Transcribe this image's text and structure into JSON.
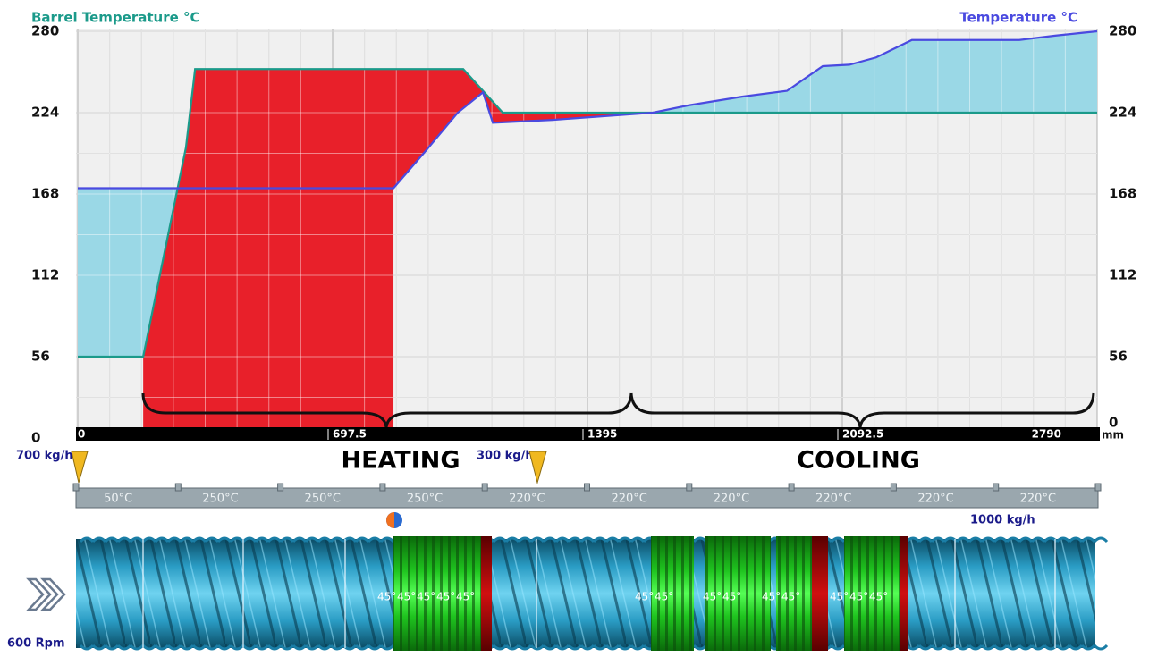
{
  "chart_data": {
    "type": "area",
    "ylabel": "Barrel Temperature °C",
    "y2label": "Temperature °C",
    "xlabel": "mm",
    "xlim": [
      0,
      2790
    ],
    "xticks": [
      0,
      697.5,
      1395,
      2092.5,
      2790
    ],
    "ylim": [
      0,
      280
    ],
    "yticks": [
      0,
      56,
      112,
      168,
      224,
      280
    ],
    "y2lim": [
      0,
      280
    ],
    "y2ticks": [
      0,
      56,
      112,
      168,
      224,
      280
    ],
    "grid": true,
    "heat_fill": "#e8202a",
    "cool_fill": "#9ad8e6",
    "series": [
      {
        "name": "Barrel Temperature °C",
        "color": "#1b9a8a",
        "x": [
          0,
          179,
          296,
          321,
          1055,
          1163,
          2790
        ],
        "values": [
          56,
          56,
          200,
          254,
          254,
          224,
          224
        ]
      },
      {
        "name": "Temperature °C",
        "color": "#4a4ae0",
        "axis": "y2",
        "x": [
          0,
          864,
          950,
          1040,
          1109,
          1136,
          1300,
          1574,
          1671,
          1818,
          1941,
          2039,
          2112,
          2185,
          2283,
          2577,
          2675,
          2790
        ],
        "values": [
          172,
          172,
          197,
          224,
          238,
          217,
          219,
          224,
          229,
          235,
          239,
          256,
          257,
          262,
          274,
          274,
          277,
          280
        ]
      }
    ]
  },
  "sections": [
    "HEATING",
    "COOLING"
  ],
  "feeds": [
    "700 kg/h",
    "300 kg/h"
  ],
  "side_feed": "1000 kg/h",
  "barrel_zones": [
    "50°C",
    "250°C",
    "250°C",
    "250°C",
    "220°C",
    "220°C",
    "220°C",
    "220°C",
    "220°C",
    "220°C"
  ],
  "screw": {
    "speed": "600 Rpm",
    "kneading_labels": [
      [
        "45°",
        "45°",
        "45°",
        "45°",
        "45°"
      ],
      [
        "45°",
        "45°"
      ],
      [
        "45°",
        "45°"
      ],
      [
        "45°",
        "45°"
      ],
      [
        "45°",
        "45°",
        "45°"
      ]
    ]
  }
}
